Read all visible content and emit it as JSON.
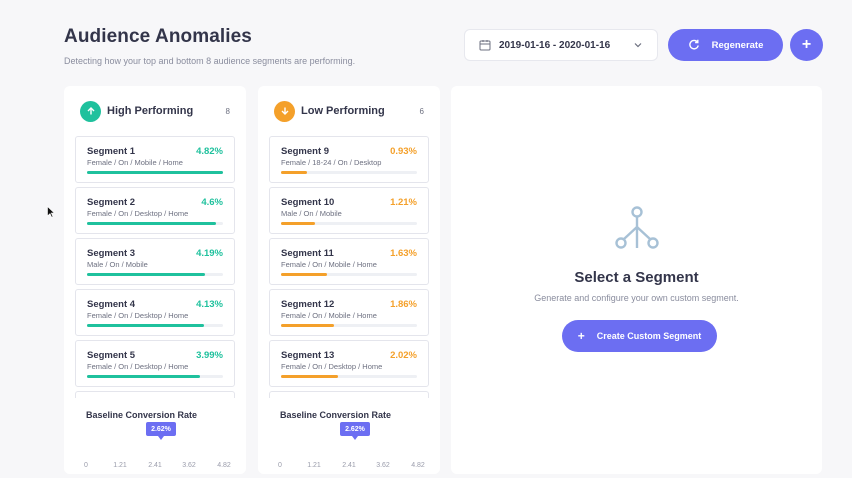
{
  "header": {
    "title": "Audience Anomalies",
    "subtitle": "Detecting how your top and bottom 8 audience segments are performing."
  },
  "toolbar": {
    "date_range": "2019-01-16 - 2020-01-16",
    "regenerate_label": "Regenerate",
    "add_label": "+"
  },
  "high": {
    "title": "High Performing",
    "count": "8",
    "segments": [
      {
        "name": "Segment 1",
        "desc": "Female / On / Mobile / Home",
        "value": "4.82%",
        "pct": 1.0
      },
      {
        "name": "Segment 2",
        "desc": "Female / On / Desktop / Home",
        "value": "4.6%",
        "pct": 0.95
      },
      {
        "name": "Segment 3",
        "desc": "Male / On / Mobile",
        "value": "4.19%",
        "pct": 0.87
      },
      {
        "name": "Segment 4",
        "desc": "Female / On / Desktop / Home",
        "value": "4.13%",
        "pct": 0.86
      },
      {
        "name": "Segment 5",
        "desc": "Female / On / Desktop / Home",
        "value": "3.99%",
        "pct": 0.83
      },
      {
        "name": "",
        "desc": "",
        "value": "",
        "pct": 0.8
      }
    ],
    "baseline_title": "Baseline Conversion Rate",
    "baseline_value": "2.62%",
    "ticks": [
      "0",
      "1.21",
      "2.41",
      "3.62",
      "4.82"
    ]
  },
  "low": {
    "title": "Low Performing",
    "count": "6",
    "segments": [
      {
        "name": "Segment 9",
        "desc": "Female / 18-24 / On / Desktop",
        "value": "0.93%",
        "pct": 0.19
      },
      {
        "name": "Segment 10",
        "desc": "Male / On / Mobile",
        "value": "1.21%",
        "pct": 0.25
      },
      {
        "name": "Segment 11",
        "desc": "Female / On / Mobile / Home",
        "value": "1.63%",
        "pct": 0.34
      },
      {
        "name": "Segment 12",
        "desc": "Female / On / Mobile / Home",
        "value": "1.86%",
        "pct": 0.39
      },
      {
        "name": "Segment 13",
        "desc": "Female / On / Desktop / Home",
        "value": "2.02%",
        "pct": 0.42
      },
      {
        "name": "",
        "desc": "",
        "value": "",
        "pct": 0.45
      }
    ],
    "baseline_title": "Baseline Conversion Rate",
    "baseline_value": "2.62%",
    "ticks": [
      "0",
      "1.21",
      "2.41",
      "3.62",
      "4.82"
    ]
  },
  "select_panel": {
    "title": "Select a Segment",
    "subtitle": "Generate and configure your own custom segment.",
    "button_label": "Create Custom Segment",
    "button_icon": "+"
  },
  "colors": {
    "accent": "#6c6ef2",
    "high": "#1fc19d",
    "low": "#f4a02a"
  },
  "icons": {
    "calendar": "calendar-icon",
    "chevron": "chevron-down-icon",
    "refresh": "refresh-icon",
    "up": "arrow-up-icon",
    "down": "arrow-down-icon",
    "branch": "branch-icon"
  }
}
